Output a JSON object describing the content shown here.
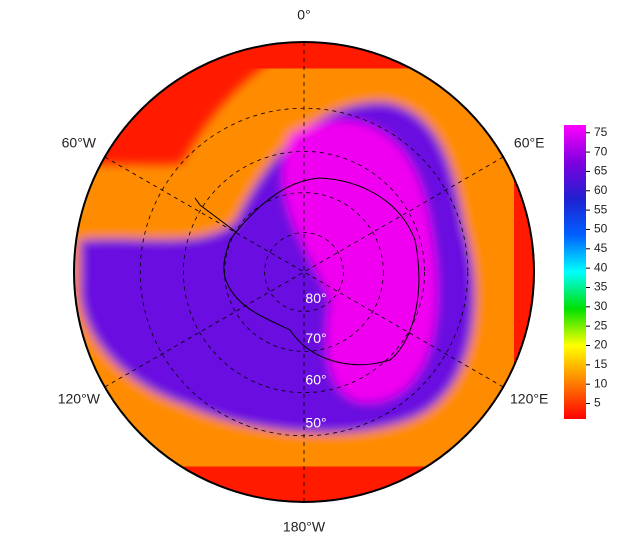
{
  "chart_data": {
    "type": "polar-map",
    "meridian_labels": [
      "0°",
      "60°E",
      "120°E",
      "180°W",
      "120°W",
      "60°W"
    ],
    "latitude_rings": [
      {
        "value": 80,
        "label": "80°"
      },
      {
        "value": 70,
        "label": "70°"
      },
      {
        "value": 60,
        "label": "60°"
      },
      {
        "value": 50,
        "label": "50°"
      }
    ],
    "colorbar": {
      "lim": [
        1,
        77
      ],
      "ticks": [
        5,
        10,
        15,
        20,
        25,
        30,
        35,
        40,
        45,
        50,
        55,
        60,
        65,
        70,
        75
      ],
      "colors": [
        "#ff0000",
        "#ff8000",
        "#ffff00",
        "#00e000",
        "#00ffff",
        "#0060ff",
        "#2020d0",
        "#8000e0",
        "#ff00ff"
      ]
    }
  }
}
